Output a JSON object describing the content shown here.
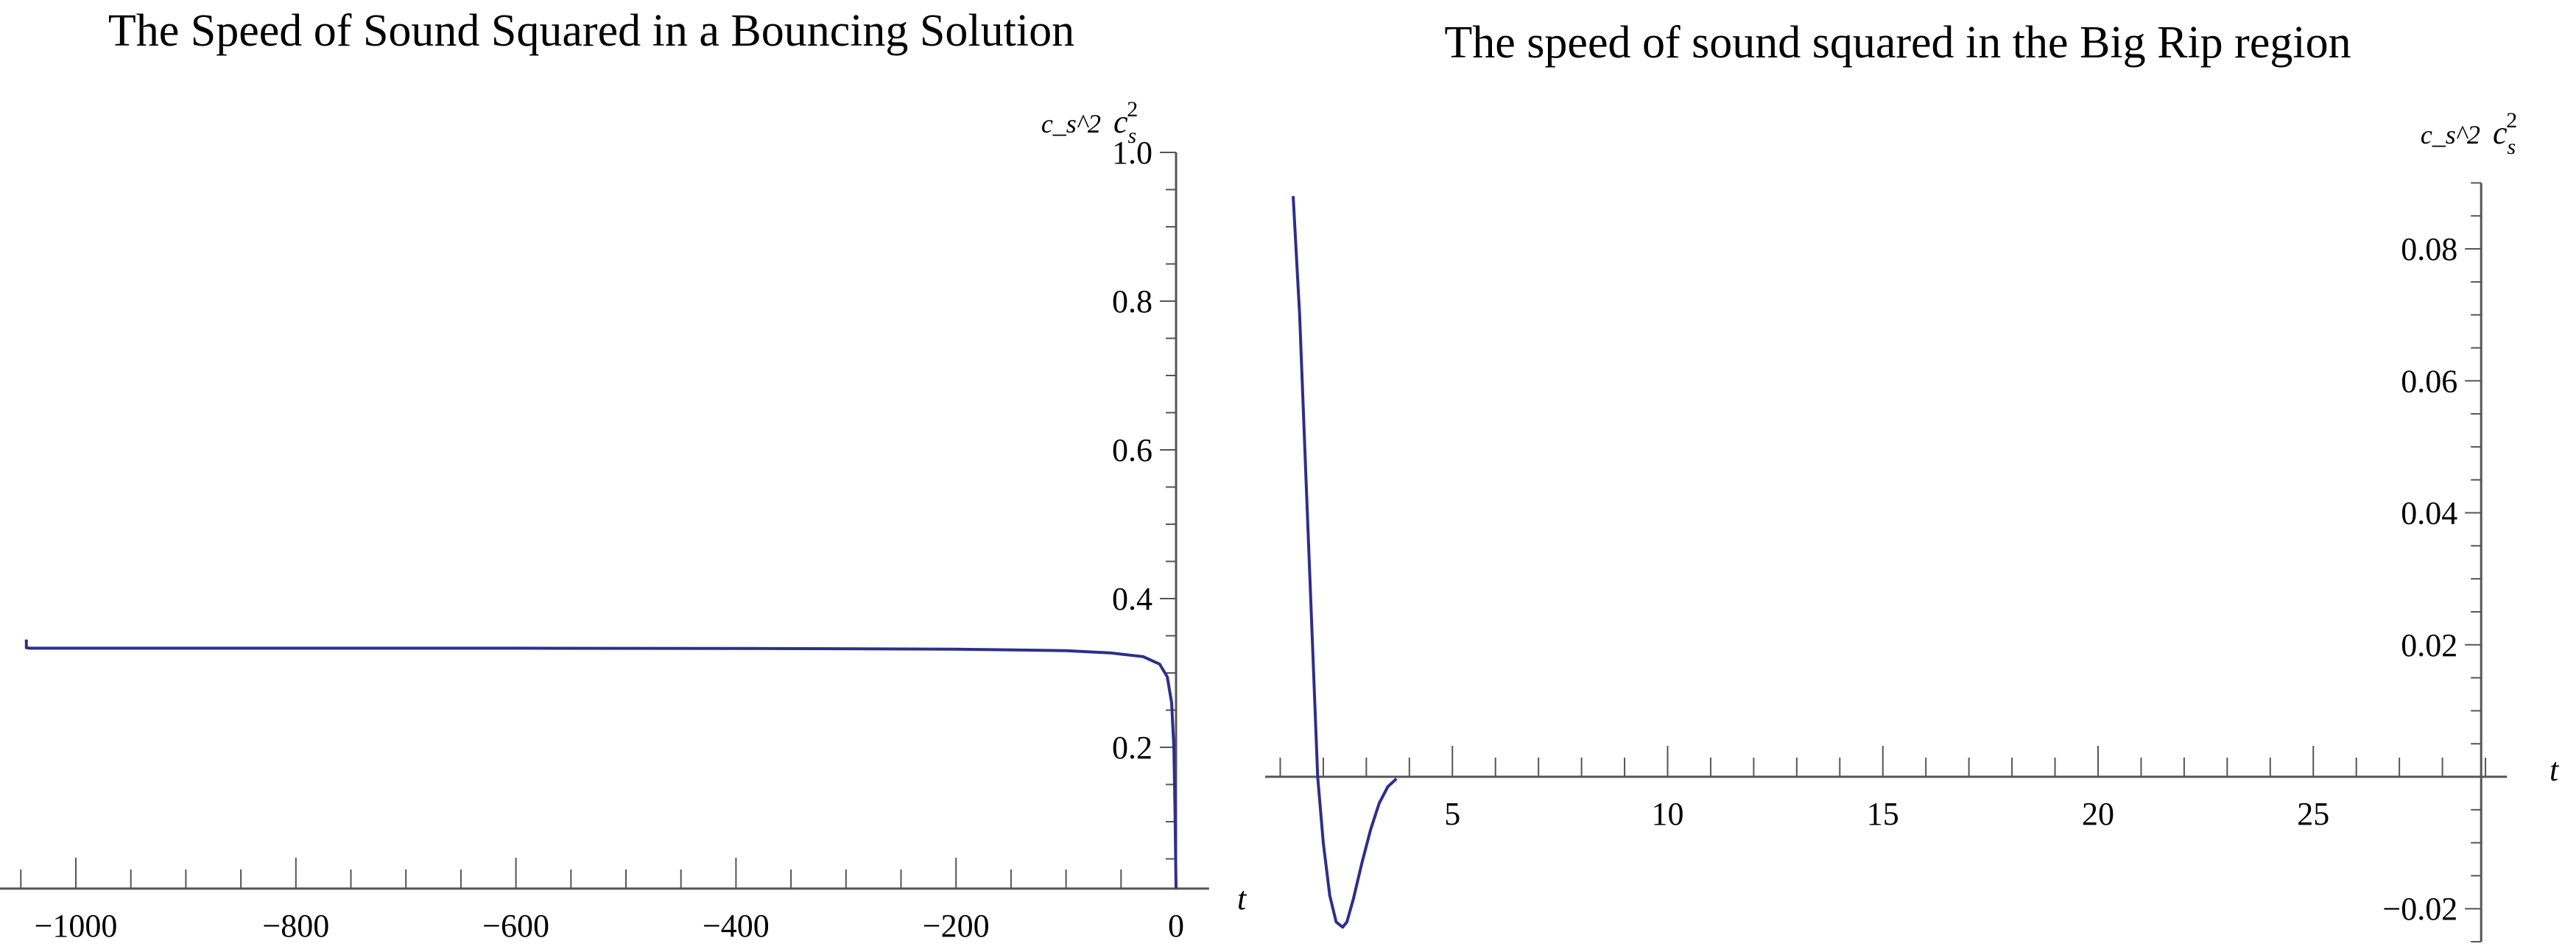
{
  "chart_data": [
    {
      "type": "line",
      "title": "The Speed of Sound Squared in a Bouncing Solution",
      "xlabel": "t",
      "ylabel": "c_s^2",
      "ylabel_base": "c",
      "ylabel_sub": "s",
      "ylabel_sup": "2",
      "xlim": [
        -1070,
        30
      ],
      "ylim": [
        0.01,
        1.0
      ],
      "x_ticks": [
        -1000,
        -800,
        -600,
        -400,
        -200,
        0
      ],
      "x_tick_labels": [
        "−1000",
        "−800",
        "−600",
        "−400",
        "−200",
        "0"
      ],
      "y_ticks": [
        0.2,
        0.4,
        0.6,
        0.8,
        1.0
      ],
      "y_tick_labels": [
        "0.2",
        "0.4",
        "0.6",
        "0.8",
        "1.0"
      ],
      "grid": false,
      "color": "#2e2e8a",
      "x": [
        -1045,
        -1045,
        -1042,
        -1000,
        -800,
        -600,
        -400,
        -200,
        -100,
        -60,
        -30,
        -15,
        -8,
        -4,
        -2,
        -1,
        0
      ],
      "y": [
        0.345,
        0.334,
        0.3333,
        0.3333,
        0.3333,
        0.3333,
        0.333,
        0.332,
        0.33,
        0.327,
        0.322,
        0.312,
        0.295,
        0.26,
        0.2,
        0.12,
        0.01
      ]
    },
    {
      "type": "line",
      "title": "The speed of sound squared in the Big Rip region",
      "xlabel": "t",
      "ylabel": "c_s^2",
      "ylabel_base": "c",
      "ylabel_sub": "s",
      "ylabel_sup": "2",
      "xlim": [
        0.65,
        29.5
      ],
      "ylim": [
        -0.025,
        0.09
      ],
      "x_ticks": [
        5,
        10,
        15,
        20,
        25
      ],
      "x_tick_labels": [
        "5",
        "10",
        "15",
        "20",
        "25"
      ],
      "y_ticks": [
        -0.02,
        0.02,
        0.04,
        0.06,
        0.08
      ],
      "y_tick_labels": [
        "−0.02",
        "0.02",
        "0.04",
        "0.06",
        "0.08"
      ],
      "grid": false,
      "color": "#2e2e8a",
      "x": [
        1.3,
        1.45,
        1.6,
        1.75,
        1.87,
        2.0,
        2.15,
        2.3,
        2.45,
        2.55,
        2.7,
        2.9,
        3.1,
        3.3,
        3.5,
        3.7
      ],
      "y": [
        0.088,
        0.07,
        0.045,
        0.02,
        0.0,
        -0.01,
        -0.018,
        -0.022,
        -0.0228,
        -0.022,
        -0.0185,
        -0.013,
        -0.008,
        -0.004,
        -0.0015,
        -0.0003
      ]
    }
  ]
}
